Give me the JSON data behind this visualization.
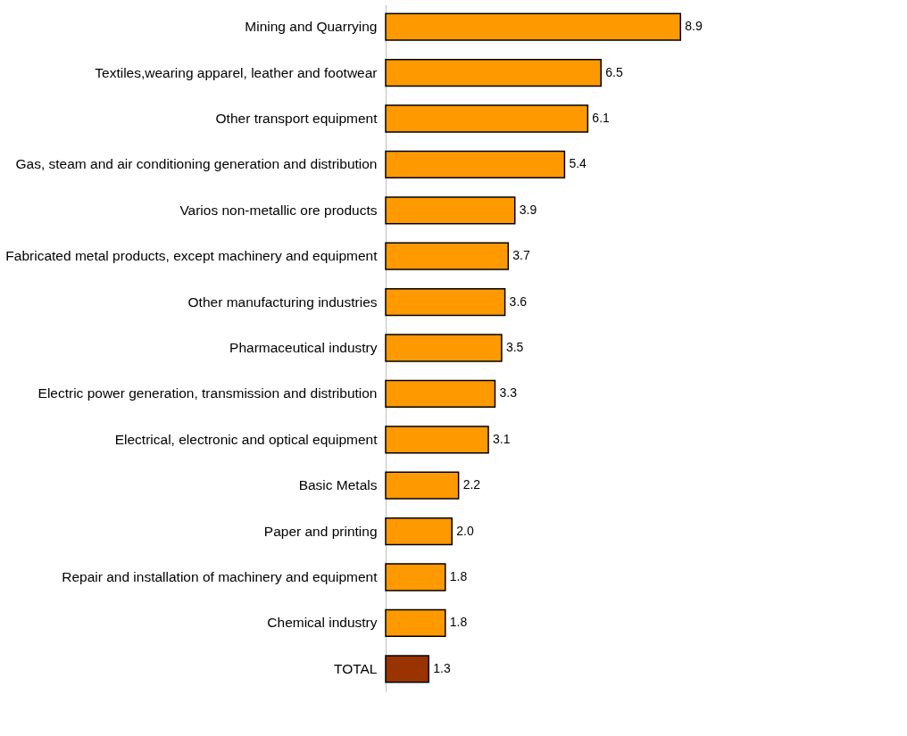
{
  "chart_data": {
    "type": "bar",
    "orientation": "horizontal",
    "categories": [
      "Mining and Quarrying",
      "Textiles,wearing apparel, leather and footwear",
      "Other transport equipment",
      "Gas, steam and air conditioning generation and distribution",
      "Varios non-metallic ore products",
      "Fabricated metal products, except machinery and equipment",
      "Other manufacturing industries",
      "Pharmaceutical industry",
      "Electric power generation, transmission and distribution",
      "Electrical, electronic and optical equipment",
      "Basic Metals",
      "Paper and printing",
      "Repair and installation of machinery and equipment",
      "Chemical industry",
      "TOTAL"
    ],
    "values": [
      8.9,
      6.5,
      6.1,
      5.4,
      3.9,
      3.7,
      3.6,
      3.5,
      3.3,
      3.1,
      2.2,
      2.0,
      1.8,
      1.8,
      1.3
    ],
    "value_labels": [
      "8.9",
      "6.5",
      "6.1",
      "5.4",
      "3.9",
      "3.7",
      "3.6",
      "3.5",
      "3.3",
      "3.1",
      "2.2",
      "2.0",
      "1.8",
      "1.8",
      "1.3"
    ],
    "colors": [
      "#ff9900",
      "#ff9900",
      "#ff9900",
      "#ff9900",
      "#ff9900",
      "#ff9900",
      "#ff9900",
      "#ff9900",
      "#ff9900",
      "#ff9900",
      "#ff9900",
      "#ff9900",
      "#ff9900",
      "#ff9900",
      "#993300"
    ],
    "legend": false
  }
}
